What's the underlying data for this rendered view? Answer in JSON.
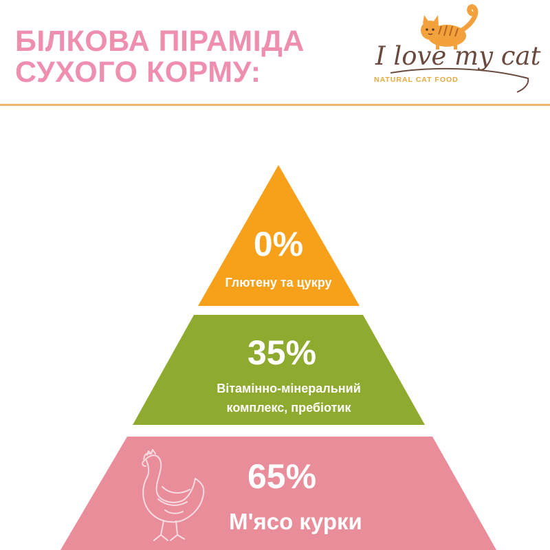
{
  "header": {
    "title_line1": "БІЛКОВА ПІРАМІДА",
    "title_line2": "СУХОГО КОРМУ:"
  },
  "logo": {
    "name": "I love my cat",
    "tagline": "NATURAL CAT FOOD",
    "icon": "cat-icon"
  },
  "pyramid": {
    "tiers": [
      {
        "percent": "0%",
        "label": "Глютену та цукру",
        "color": "#f7a11a"
      },
      {
        "percent": "35%",
        "label_line1": "Вітамінно-мінеральний",
        "label_line2": "комплекс, пребіотик",
        "color": "#8eaa2f"
      },
      {
        "percent": "65%",
        "label": "М'ясо курки",
        "color": "#e98d9a",
        "icon": "chicken-icon"
      }
    ]
  },
  "colors": {
    "title": "#ef8fae",
    "divider": "#f2b36a",
    "logo_text": "#6a4a3e",
    "logo_tagline": "#e8a83f"
  }
}
